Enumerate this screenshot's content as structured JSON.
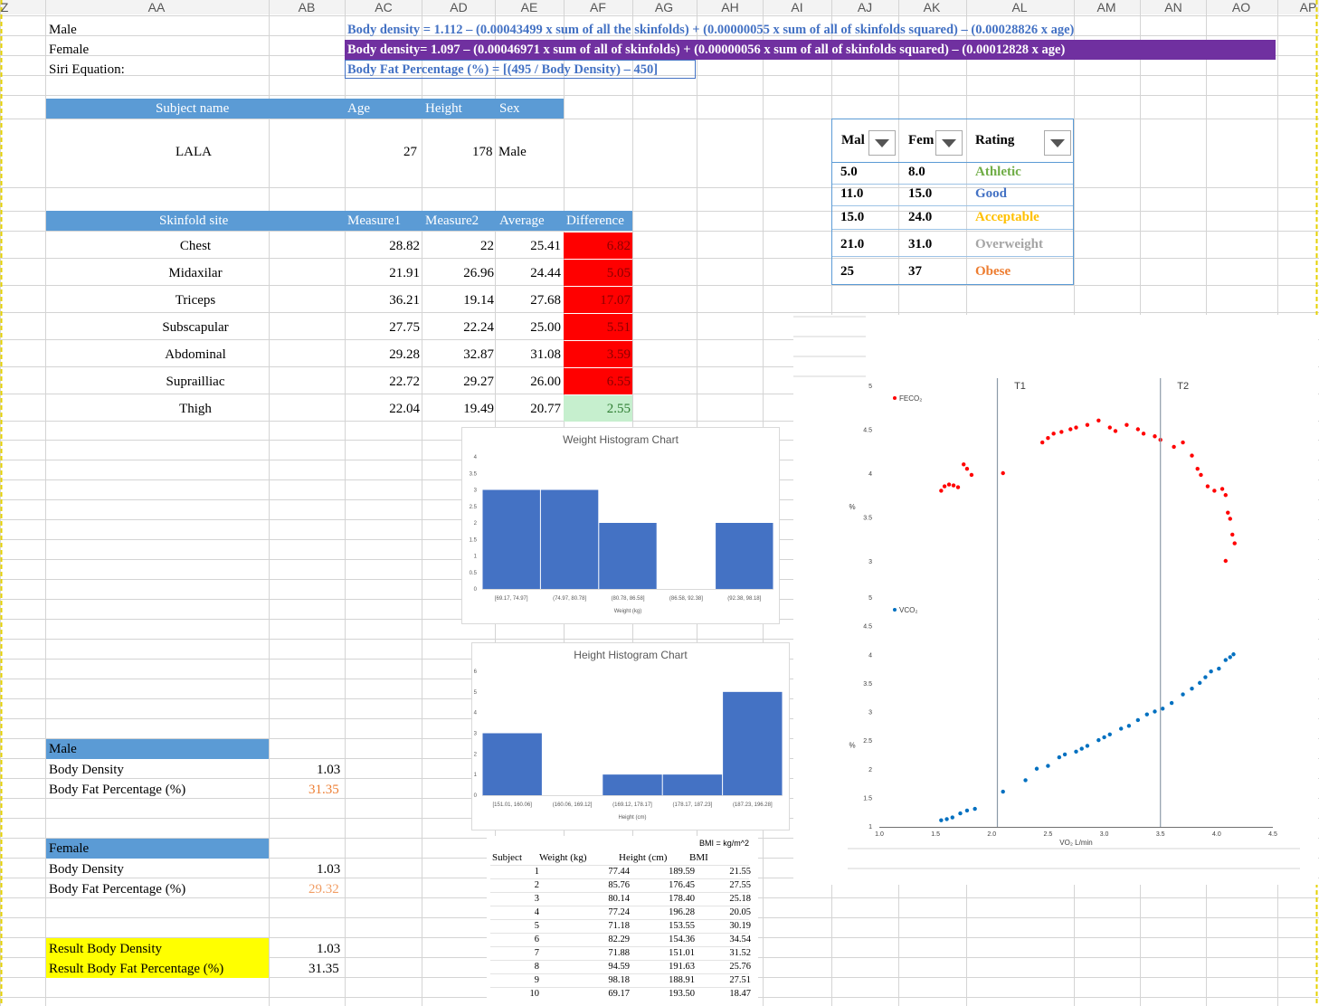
{
  "columns": [
    "Z",
    "AA",
    "AB",
    "AC",
    "AD",
    "AE",
    "AF",
    "AG",
    "AH",
    "AI",
    "AJ",
    "AK",
    "AL",
    "AM",
    "AN",
    "AO",
    "AP"
  ],
  "equations": {
    "male_label": "Male",
    "female_label": "Female",
    "siri_label": "Siri Equation:",
    "male_eq": "Body density = 1.112 – (0.00043499 x sum of all the skinfolds) + (0.00000055 x sum of all of skinfolds squared) – (0.00028826 x age)",
    "female_eq": "Body density= 1.097 – (0.00046971 x sum of all of skinfolds) + (0.00000056 x sum of all of skinfolds squared) – (0.00012828 x age)",
    "siri_eq": "Body Fat Percentage (%) = [(495 / Body Density) – 450]"
  },
  "subject": {
    "headers": [
      "Subject name",
      "Age",
      "Height",
      "Sex"
    ],
    "name": "LALA",
    "age": "27",
    "height": "178",
    "sex": "Male"
  },
  "skinfolds": {
    "headers": [
      "Skinfold site",
      "Measure1",
      "Measure2",
      "Average",
      "Difference"
    ],
    "rows": [
      {
        "site": "Chest",
        "m1": "28.82",
        "m2": "22",
        "avg": "25.41",
        "diff": "6.82",
        "flag": "red"
      },
      {
        "site": "Midaxilar",
        "m1": "21.91",
        "m2": "26.96",
        "avg": "24.44",
        "diff": "5.05",
        "flag": "red"
      },
      {
        "site": "Triceps",
        "m1": "36.21",
        "m2": "19.14",
        "avg": "27.68",
        "diff": "17.07",
        "flag": "red"
      },
      {
        "site": "Subscapular",
        "m1": "27.75",
        "m2": "22.24",
        "avg": "25.00",
        "diff": "5.51",
        "flag": "red"
      },
      {
        "site": "Abdominal",
        "m1": "29.28",
        "m2": "32.87",
        "avg": "31.08",
        "diff": "3.59",
        "flag": "red"
      },
      {
        "site": "Suprailliac",
        "m1": "22.72",
        "m2": "29.27",
        "avg": "26.00",
        "diff": "6.55",
        "flag": "red"
      },
      {
        "site": "Thigh",
        "m1": "22.04",
        "m2": "19.49",
        "avg": "20.77",
        "diff": "2.55",
        "flag": "green"
      }
    ]
  },
  "ratings": {
    "headers": [
      "Mal",
      "Fem",
      "Rating"
    ],
    "rows": [
      {
        "male": "5.0",
        "female": "8.0",
        "rating": "Athletic",
        "color": "#70ad47"
      },
      {
        "male": "11.0",
        "female": "15.0",
        "rating": "Good",
        "color": "#4472c4"
      },
      {
        "male": "15.0",
        "female": "24.0",
        "rating": "Acceptable",
        "color": "#ffc000"
      },
      {
        "male": "21.0",
        "female": "31.0",
        "rating": "Overweight",
        "color": "#a5a5a5"
      },
      {
        "male": "25",
        "female": "37",
        "rating": "Obese",
        "color": "#ed7d31"
      }
    ]
  },
  "male_result": {
    "title": "Male",
    "density_label": "Body Density",
    "density": "1.03",
    "bf_label": "Body Fat Percentage (%)",
    "bf": "31.35"
  },
  "female_result": {
    "title": "Female",
    "density_label": "Body Density",
    "density": "1.03",
    "bf_label": "Body Fat Percentage (%)",
    "bf": "29.32"
  },
  "final_result": {
    "density_label": "Result Body Density",
    "density": "1.03",
    "bf_label": "Result Body Fat Percentage (%)",
    "bf": "31.35"
  },
  "bmi_table": {
    "formula": "BMI = kg/m^2",
    "headers": [
      "Subject",
      "Weight (kg)",
      "Height (cm)",
      "BMI"
    ],
    "rows": [
      [
        "1",
        "77.44",
        "189.59",
        "21.55"
      ],
      [
        "2",
        "85.76",
        "176.45",
        "27.55"
      ],
      [
        "3",
        "80.14",
        "178.40",
        "25.18"
      ],
      [
        "4",
        "77.24",
        "196.28",
        "20.05"
      ],
      [
        "5",
        "71.18",
        "153.55",
        "30.19"
      ],
      [
        "6",
        "82.29",
        "154.36",
        "34.54"
      ],
      [
        "7",
        "71.88",
        "151.01",
        "31.52"
      ],
      [
        "8",
        "94.59",
        "191.63",
        "25.76"
      ],
      [
        "9",
        "98.18",
        "188.91",
        "27.51"
      ],
      [
        "10",
        "69.17",
        "193.50",
        "18.47"
      ]
    ]
  },
  "colors": {
    "header_blue": "#5b9bd5",
    "purple": "#7030a0",
    "yellow": "#ffff00",
    "red": "#ff0000",
    "green_fill": "#c6efce",
    "orange_text": "#ed7d31",
    "bar_blue": "#4472c4"
  },
  "chart_data": [
    {
      "type": "bar",
      "title": "Weight Histogram Chart",
      "xlabel": "Weight (kg)",
      "categories": [
        "[69.17, 74.97]",
        "(74.97, 80.78]",
        "(80.78, 86.58]",
        "(86.58, 92.38]",
        "(92.38, 98.18]"
      ],
      "values": [
        3,
        3,
        2,
        0,
        2
      ],
      "ylim": [
        0,
        4
      ],
      "yticks": [
        "0",
        "0.5",
        "1",
        "1.5",
        "2",
        "2.5",
        "3",
        "3.5",
        "4"
      ]
    },
    {
      "type": "bar",
      "title": "Height Histogram Chart",
      "xlabel": "Height (cm)",
      "categories": [
        "[151.01, 160.06]",
        "(160.06, 169.12]",
        "(169.12, 178.17]",
        "(178.17, 187.23]",
        "(187.23, 196.28]"
      ],
      "values": [
        3,
        0,
        1,
        1,
        5
      ],
      "ylim": [
        0,
        6
      ],
      "yticks": [
        "0",
        "1",
        "2",
        "3",
        "4",
        "5",
        "6"
      ]
    },
    {
      "type": "scatter",
      "xlabel": "VO₂ L/min",
      "ylabel": "%",
      "xlim": [
        1.0,
        4.5
      ],
      "xticks": [
        "1.0",
        "1.5",
        "2.0",
        "2.5",
        "3.0",
        "3.5",
        "4.0",
        "4.5"
      ],
      "vlines": [
        {
          "x": 2.05,
          "label": "T1"
        },
        {
          "x": 3.5,
          "label": "T2"
        }
      ],
      "panels": [
        {
          "name": "FECO₂",
          "color": "#ff0000",
          "ylim": [
            3,
            5
          ],
          "yticks": [
            "3",
            "3.5",
            "4",
            "4.5",
            "5"
          ],
          "points": [
            [
              1.55,
              3.8
            ],
            [
              1.58,
              3.85
            ],
            [
              1.62,
              3.87
            ],
            [
              1.66,
              3.86
            ],
            [
              1.7,
              3.84
            ],
            [
              1.75,
              4.1
            ],
            [
              1.78,
              4.05
            ],
            [
              1.82,
              3.98
            ],
            [
              2.1,
              4.0
            ],
            [
              2.45,
              4.35
            ],
            [
              2.5,
              4.4
            ],
            [
              2.55,
              4.45
            ],
            [
              2.62,
              4.47
            ],
            [
              2.7,
              4.5
            ],
            [
              2.75,
              4.52
            ],
            [
              2.85,
              4.55
            ],
            [
              2.95,
              4.6
            ],
            [
              3.05,
              4.52
            ],
            [
              3.1,
              4.48
            ],
            [
              3.2,
              4.55
            ],
            [
              3.3,
              4.5
            ],
            [
              3.35,
              4.45
            ],
            [
              3.45,
              4.42
            ],
            [
              3.5,
              4.38
            ],
            [
              3.62,
              4.3
            ],
            [
              3.7,
              4.35
            ],
            [
              3.78,
              4.2
            ],
            [
              3.83,
              4.05
            ],
            [
              3.86,
              3.98
            ],
            [
              3.92,
              3.85
            ],
            [
              3.98,
              3.8
            ],
            [
              4.05,
              3.82
            ],
            [
              4.08,
              3.75
            ],
            [
              4.1,
              3.55
            ],
            [
              4.12,
              3.48
            ],
            [
              4.14,
              3.3
            ],
            [
              4.16,
              3.2
            ],
            [
              4.08,
              3.0
            ]
          ]
        },
        {
          "name": "VCO₂",
          "color": "#0070c0",
          "ylim": [
            1,
            5
          ],
          "yticks": [
            "1",
            "1.5",
            "2",
            "2.5",
            "3",
            "3.5",
            "4",
            "4.5",
            "5"
          ],
          "points": [
            [
              1.55,
              1.1
            ],
            [
              1.6,
              1.12
            ],
            [
              1.65,
              1.15
            ],
            [
              1.72,
              1.22
            ],
            [
              1.78,
              1.27
            ],
            [
              1.85,
              1.3
            ],
            [
              2.1,
              1.6
            ],
            [
              2.3,
              1.8
            ],
            [
              2.4,
              2.0
            ],
            [
              2.5,
              2.05
            ],
            [
              2.6,
              2.2
            ],
            [
              2.65,
              2.25
            ],
            [
              2.75,
              2.3
            ],
            [
              2.8,
              2.35
            ],
            [
              2.85,
              2.4
            ],
            [
              2.95,
              2.5
            ],
            [
              3.0,
              2.55
            ],
            [
              3.05,
              2.6
            ],
            [
              3.15,
              2.7
            ],
            [
              3.22,
              2.75
            ],
            [
              3.3,
              2.85
            ],
            [
              3.38,
              2.95
            ],
            [
              3.45,
              3.0
            ],
            [
              3.52,
              3.05
            ],
            [
              3.6,
              3.15
            ],
            [
              3.7,
              3.3
            ],
            [
              3.78,
              3.4
            ],
            [
              3.85,
              3.5
            ],
            [
              3.9,
              3.6
            ],
            [
              3.95,
              3.7
            ],
            [
              4.02,
              3.75
            ],
            [
              4.08,
              3.9
            ],
            [
              4.12,
              3.95
            ],
            [
              4.15,
              4.0
            ]
          ]
        }
      ]
    }
  ]
}
